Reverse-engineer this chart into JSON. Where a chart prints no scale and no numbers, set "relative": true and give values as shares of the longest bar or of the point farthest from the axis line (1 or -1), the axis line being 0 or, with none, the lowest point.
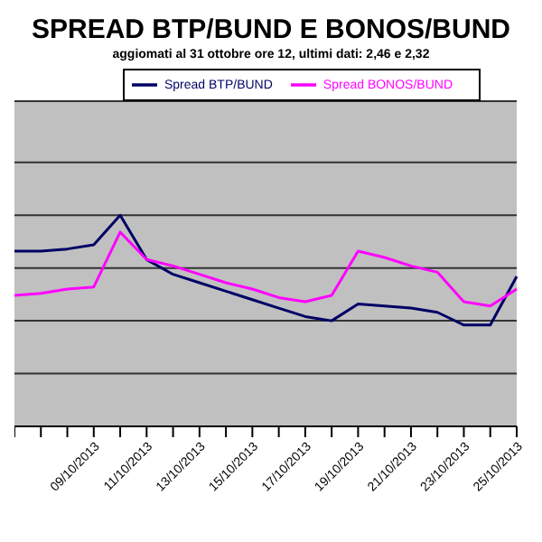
{
  "chart_data": {
    "type": "line",
    "title": "SPREAD BTP/BUND E BONOS/BUND",
    "subtitle": "aggiomati al 31 ottobre ore 12, ultimi dati: 2,46 e 2,32",
    "relative": true,
    "grid": "y",
    "legend": "top",
    "marker": "none",
    "categories": [
      null,
      null,
      null,
      "09/10/2013",
      null,
      "11/10/2013",
      null,
      "13/10/2013",
      null,
      "15/10/2013",
      null,
      "17/10/2013",
      null,
      "19/10/2013",
      null,
      "21/10/2013",
      null,
      "23/10/2013",
      null,
      "25/10/2013"
    ],
    "series": [
      {
        "name": "Spread BTP/BUND",
        "color": "#000066",
        "values": [
          0.83,
          0.83,
          0.84,
          0.86,
          1,
          0.79,
          0.72,
          0.68,
          0.64,
          0.6,
          0.56,
          0.52,
          0.5,
          0.58,
          0.57,
          0.56,
          0.54,
          0.48,
          0.48,
          0.71
        ]
      },
      {
        "name": "Spread BONOS/BUND",
        "color": "#ff00ff",
        "values": [
          0.62,
          0.63,
          0.65,
          0.66,
          0.92,
          0.79,
          0.76,
          0.72,
          0.68,
          0.65,
          0.61,
          0.59,
          0.62,
          0.83,
          0.8,
          0.76,
          0.73,
          0.59,
          0.57,
          0.65
        ]
      }
    ]
  }
}
